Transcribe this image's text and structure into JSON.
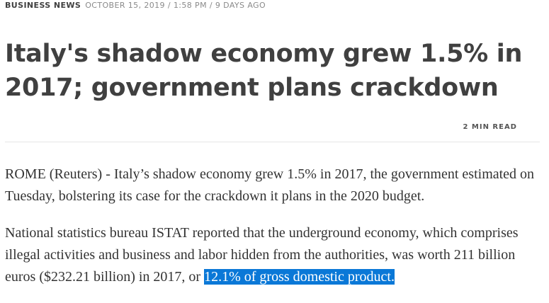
{
  "header": {
    "section": "BUSINESS NEWS",
    "dateline": "OCTOBER 15, 2019 / 1:58 PM / 9 DAYS AGO"
  },
  "article": {
    "title": "Italy's shadow economy grew 1.5% in 2017; government plans crackdown",
    "read_time": "2 MIN READ",
    "paragraphs": [
      {
        "text": "ROME (Reuters) - Italy’s shadow economy grew 1.5% in 2017, the government estimated on Tuesday, bolstering its case for the crackdown it plans in the 2020 budget."
      },
      {
        "text_before": "National statistics bureau ISTAT reported that the underground economy, which comprises illegal activities and business and labor hidden from the authorities, was worth 211 billion euros ($232.21 billion) in 2017, or ",
        "selected_text": "12.1% of gross domestic product."
      }
    ]
  },
  "colors": {
    "selection_bg": "#0a78d7",
    "selection_text": "#ffffff",
    "text": "#404040",
    "muted": "#8a8a8a"
  }
}
